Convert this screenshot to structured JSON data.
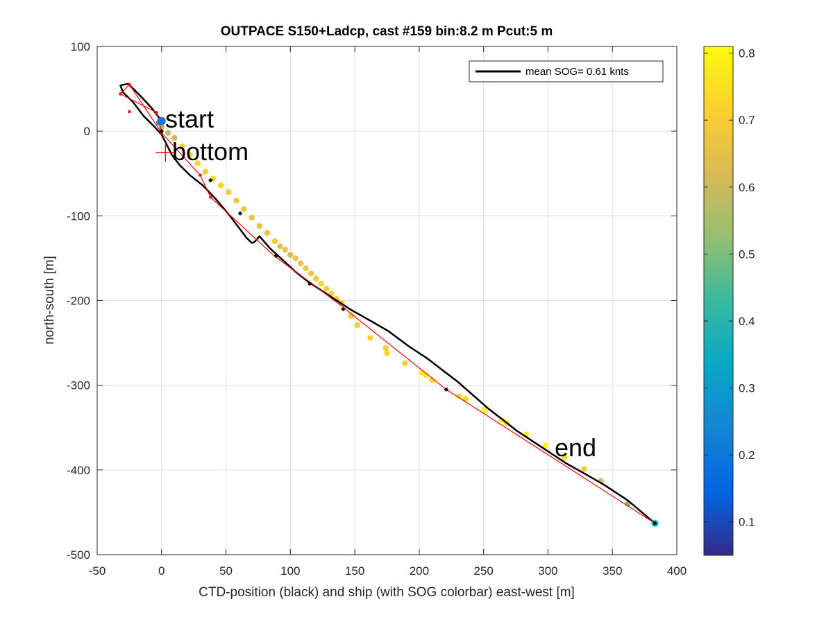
{
  "chart_data": {
    "type": "scatter",
    "title": "OUTPACE S150+Ladcp, cast #159 bin:8.2 m  Pcut:5 m",
    "xlabel": "CTD-position (black) and ship (with SOG colorbar) east-west [m]",
    "ylabel": "north-south [m]",
    "xlim": [
      -50,
      400
    ],
    "ylim": [
      -500,
      100
    ],
    "x_ticks": [
      "-50",
      "0",
      "50",
      "100",
      "150",
      "200",
      "250",
      "300",
      "350",
      "400"
    ],
    "y_ticks": [
      "100",
      "0",
      "-100",
      "-200",
      "-300",
      "-400",
      "-500"
    ],
    "grid": true,
    "legend": {
      "label": "mean SOG=  0.61 knts",
      "placement": "top-right"
    },
    "colorbar": {
      "range": [
        0.05,
        0.81
      ],
      "ticks": [
        "0.1",
        "0.2",
        "0.3",
        "0.4",
        "0.5",
        "0.6",
        "0.7",
        "0.8"
      ],
      "colormap": "parula"
    },
    "annotations": [
      {
        "text": "start",
        "x": 0,
        "y": 12
      },
      {
        "text": "bottom",
        "x": 3,
        "y": -25
      },
      {
        "text": "end",
        "x": 305,
        "y": -380
      }
    ],
    "ctd_track": {
      "name": "CTD-position",
      "color": "#000000",
      "x": [
        0,
        -8,
        -18,
        -26,
        -32,
        -30,
        -22,
        -14,
        -6,
        0,
        4,
        8,
        14,
        22,
        32,
        42,
        52,
        60,
        66,
        70,
        72,
        76,
        84,
        94,
        104,
        114,
        124,
        134,
        146,
        160,
        176,
        192,
        206,
        218,
        230,
        242,
        254,
        266,
        276,
        284,
        292,
        302,
        314,
        328,
        344,
        362,
        383
      ],
      "y": [
        12,
        28,
        44,
        56,
        54,
        46,
        34,
        18,
        6,
        -4,
        -16,
        -28,
        -40,
        -52,
        -64,
        -80,
        -98,
        -114,
        -126,
        -132,
        -131,
        -124,
        -138,
        -152,
        -166,
        -178,
        -188,
        -198,
        -210,
        -222,
        -236,
        -254,
        -268,
        -282,
        -296,
        -312,
        -328,
        -342,
        -354,
        -362,
        -370,
        -380,
        -392,
        -404,
        -418,
        -436,
        -463
      ]
    },
    "ctd_markers": {
      "x": [
        0,
        38,
        61,
        89,
        115,
        141,
        221,
        383
      ],
      "y": [
        0,
        -58,
        -97,
        -147,
        -180,
        -210,
        -305,
        -463
      ]
    },
    "ship_track": {
      "name": "ship",
      "color": "#ff0000",
      "x": [
        0,
        -4,
        -32,
        -25,
        0,
        30,
        38,
        88,
        115,
        141,
        221,
        383
      ],
      "y": [
        0,
        22,
        44,
        55,
        -2,
        -52,
        -78,
        -148,
        -178,
        -208,
        -305,
        -463
      ]
    },
    "ship_vertices": {
      "x": [
        -4,
        -32,
        -25,
        -25,
        0,
        30,
        38
      ],
      "y": [
        22,
        44,
        55,
        23,
        -2,
        -52,
        -78
      ]
    },
    "sog_points": {
      "x": [
        -2,
        0,
        5,
        10,
        16,
        22,
        28,
        34,
        40,
        46,
        52,
        58,
        64,
        70,
        76,
        82,
        88,
        92,
        96,
        100,
        104,
        108,
        112,
        116,
        120,
        124,
        128,
        132,
        136,
        140,
        147,
        152,
        162,
        174,
        175,
        189,
        202,
        205,
        210,
        231,
        236,
        251,
        264,
        268,
        283,
        298,
        313,
        328,
        341,
        362,
        383
      ],
      "y": [
        10,
        5,
        -2,
        -8,
        -18,
        -28,
        -38,
        -48,
        -56,
        -64,
        -72,
        -82,
        -92,
        -102,
        -112,
        -120,
        -130,
        -136,
        -140,
        -146,
        -150,
        -156,
        -162,
        -168,
        -174,
        -180,
        -186,
        -192,
        -198,
        -203,
        -218,
        -229,
        -244,
        -256,
        -262,
        -274,
        -285,
        -288,
        -294,
        -313,
        -316,
        -329,
        -341,
        -345,
        -358,
        -371,
        -385,
        -399,
        -413,
        -440,
        -463
      ],
      "sog": [
        0.3,
        0.55,
        0.6,
        0.62,
        0.7,
        0.72,
        0.72,
        0.7,
        0.72,
        0.72,
        0.7,
        0.68,
        0.68,
        0.67,
        0.66,
        0.67,
        0.7,
        0.65,
        0.66,
        0.62,
        0.67,
        0.65,
        0.68,
        0.68,
        0.7,
        0.72,
        0.7,
        0.72,
        0.7,
        0.72,
        0.71,
        0.72,
        0.7,
        0.7,
        0.72,
        0.7,
        0.78,
        0.77,
        0.75,
        0.76,
        0.74,
        0.78,
        0.8,
        0.79,
        0.79,
        0.81,
        0.74,
        0.7,
        0.62,
        0.5,
        0.38
      ]
    }
  }
}
